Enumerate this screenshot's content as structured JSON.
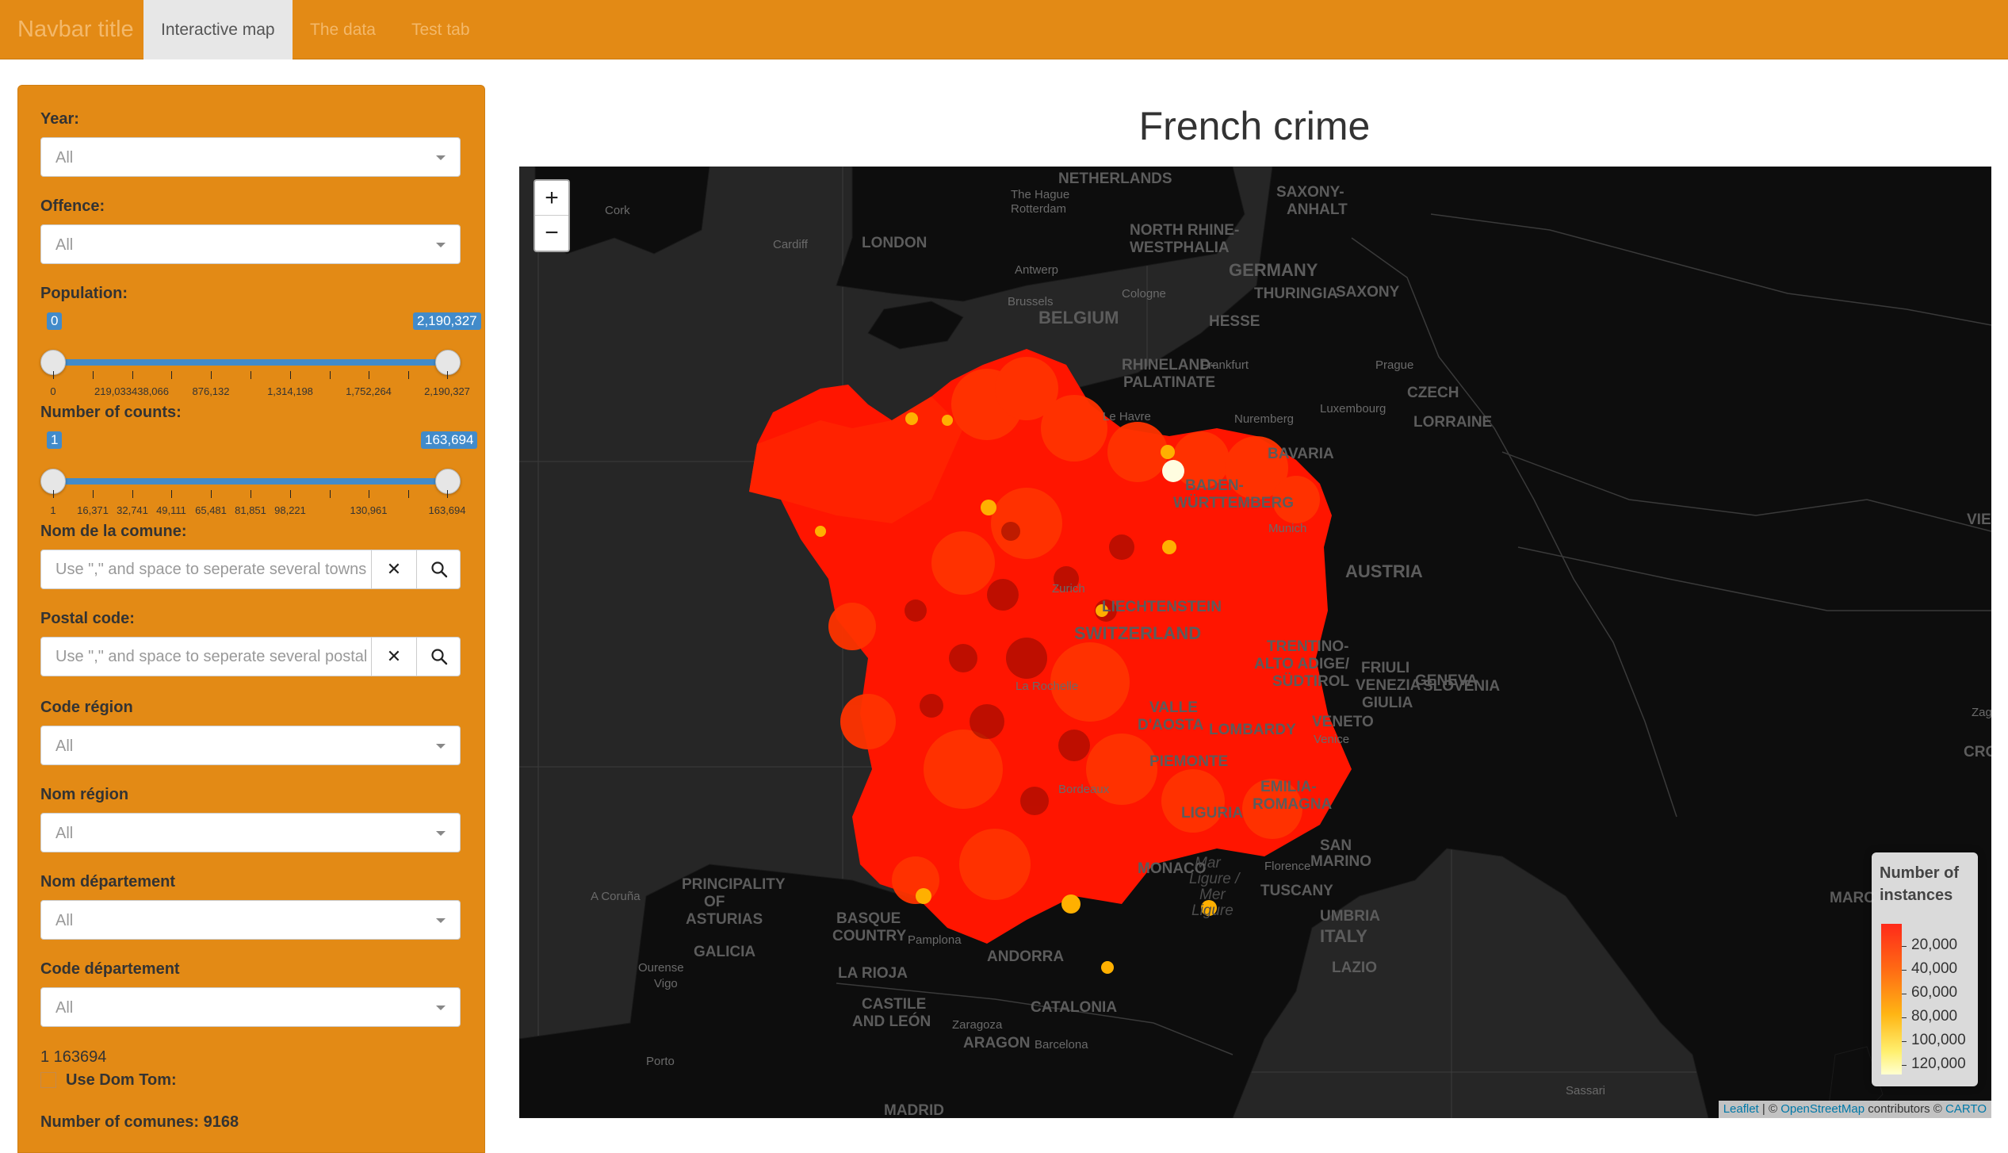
{
  "navbar": {
    "brand": "Navbar title",
    "tabs": [
      {
        "label": "Interactive map",
        "active": true
      },
      {
        "label": "The data",
        "active": false
      },
      {
        "label": "Test tab",
        "active": false
      }
    ]
  },
  "sidebar": {
    "year": {
      "label": "Year:",
      "value": "All"
    },
    "offence": {
      "label": "Offence:",
      "value": "All"
    },
    "population": {
      "label": "Population:",
      "min_badge": "0",
      "max_badge": "2,190,327",
      "tick_labels": [
        "0",
        "219,033438,066",
        "876,132",
        "1,314,198",
        "1,752,264",
        "2,190,327"
      ]
    },
    "counts": {
      "label": "Number of counts:",
      "min_badge": "1",
      "max_badge": "163,694",
      "tick_labels": [
        "1",
        "16,371",
        "32,741",
        "49,111",
        "65,481",
        "81,851",
        "98,221",
        "130,961",
        "163,694"
      ]
    },
    "comune": {
      "label": "Nom de la comune:",
      "placeholder": "Use \",\" and space to seperate several towns"
    },
    "postal": {
      "label": "Postal code:",
      "placeholder": "Use \",\" and space to seperate several postal codes"
    },
    "code_region": {
      "label": "Code région",
      "value": "All"
    },
    "nom_region": {
      "label": "Nom région",
      "value": "All"
    },
    "nom_departement": {
      "label": "Nom département",
      "value": "All"
    },
    "code_departement": {
      "label": "Code département",
      "value": "All"
    },
    "range_text": "1 163694",
    "dom_tom": {
      "label": "Use Dom Tom:",
      "checked": false
    },
    "comunes_count": "Number of comunes: 9168"
  },
  "main": {
    "title": "French crime",
    "zoom_in": "+",
    "zoom_out": "−",
    "legend": {
      "title_line1": "Number of",
      "title_line2": "instances",
      "values": [
        "20,000",
        "40,000",
        "60,000",
        "80,000",
        "100,000",
        "120,000"
      ]
    },
    "attribution": {
      "leaflet": "Leaflet",
      "sep": " | © ",
      "osm": "OpenStreetMap",
      "contrib": " contributors © ",
      "carto": "CARTO"
    },
    "map_labels": [
      "NETHERLANDS",
      "The Hague",
      "Rotterdam",
      "Antwerp",
      "Brussels",
      "BELGIUM",
      "Cologne",
      "NORTH RHINE-",
      "WESTPHALIA",
      "GERMANY",
      "SAXONY-",
      "ANHALT",
      "THURINGIA",
      "SAXONY",
      "HESSE",
      "RHINELAND-",
      "PALATINATE",
      "Frankfurt",
      "Prague",
      "CZECH",
      "Nuremberg",
      "BAVARIA",
      "BADEN-",
      "WÜRTTEMBERG",
      "Munich",
      "AUSTRIA",
      "Zurich",
      "LIECHTENSTEIN",
      "SWITZERLAND",
      "TRENTINO-",
      "ALTO ADIGE/",
      "SÜDTIROL",
      "FRIULI",
      "VENEZIA",
      "GIULIA",
      "SLOVENIA",
      "VALLE",
      "D'AOSTA",
      "LOMBARDY",
      "VENETO",
      "Venice",
      "PIEMONTE",
      "EMILIA-",
      "ROMAGNA",
      "LIGURIA",
      "MONACO",
      "Mar",
      "Ligure /",
      "Mer",
      "Ligure",
      "Florence",
      "TUSCANY",
      "SAN",
      "MARINO",
      "UMBRIA",
      "ITALY",
      "LAZIO",
      "Cork",
      "Cardiff",
      "LONDON",
      "A Coruña",
      "PRINCIPALITY",
      "OF",
      "ASTURIAS",
      "BASQUE",
      "COUNTRY",
      "Pamplona",
      "GALICIA",
      "Ourense",
      "Vigo",
      "LA RIOJA",
      "CASTILE",
      "AND LEÓN",
      "ANDORRA",
      "CATALONIA",
      "Barcelona",
      "Zaragoza",
      "ARAGON",
      "Porto",
      "MADRID",
      "Sassari",
      "Le Havre",
      "La Rochelle",
      "Bordeaux",
      "Luxembourg",
      "LORRAINE",
      "GENEVA",
      "MARC",
      "Zagr",
      "CRO",
      "VIE"
    ]
  }
}
